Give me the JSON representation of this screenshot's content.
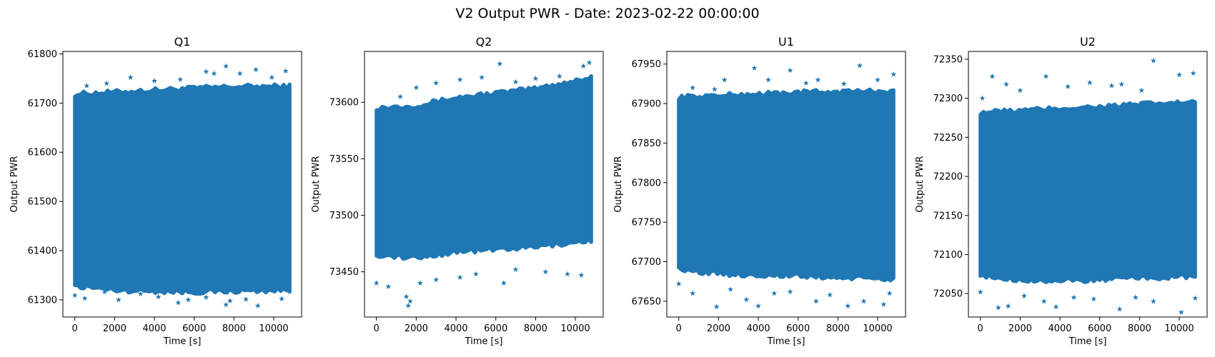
{
  "figure": {
    "title": "V2 Output PWR - Date: 2023-02-22 00:00:00"
  },
  "chart_data": [
    {
      "type": "scatter",
      "title": "Q1",
      "xlabel": "Time [s]",
      "ylabel": "Output PWR",
      "marker": "star",
      "color": "#1f77b4",
      "xlim": [
        -600,
        11400
      ],
      "ylim": [
        61265,
        61805
      ],
      "xticks": [
        0,
        2000,
        4000,
        6000,
        8000,
        10000
      ],
      "yticks": [
        61300,
        61400,
        61500,
        61600,
        61700,
        61800
      ],
      "x_range": [
        0,
        10800
      ],
      "band_lower": [
        [
          0,
          61328
        ],
        [
          2000,
          61320
        ],
        [
          4000,
          61318
        ],
        [
          6000,
          61316
        ],
        [
          8000,
          61318
        ],
        [
          10800,
          61320
        ]
      ],
      "band_upper": [
        [
          0,
          61718
        ],
        [
          2000,
          61722
        ],
        [
          4000,
          61726
        ],
        [
          6000,
          61730
        ],
        [
          8000,
          61733
        ],
        [
          10800,
          61734
        ]
      ],
      "outliers": [
        [
          0,
          61309
        ],
        [
          500,
          61303
        ],
        [
          1500,
          61316
        ],
        [
          2200,
          61300
        ],
        [
          3300,
          61312
        ],
        [
          4200,
          61306
        ],
        [
          5200,
          61294
        ],
        [
          5700,
          61300
        ],
        [
          6600,
          61305
        ],
        [
          7600,
          61290
        ],
        [
          7800,
          61298
        ],
        [
          8600,
          61301
        ],
        [
          9200,
          61288
        ],
        [
          10400,
          61302
        ],
        [
          10800,
          61316
        ],
        [
          600,
          61735
        ],
        [
          1600,
          61740
        ],
        [
          2800,
          61752
        ],
        [
          4000,
          61745
        ],
        [
          5300,
          61748
        ],
        [
          6600,
          61764
        ],
        [
          7000,
          61760
        ],
        [
          7600,
          61775
        ],
        [
          8300,
          61760
        ],
        [
          9100,
          61768
        ],
        [
          9900,
          61752
        ],
        [
          10600,
          61765
        ]
      ],
      "grid": false,
      "legend": "none"
    },
    {
      "type": "scatter",
      "title": "Q2",
      "xlabel": "Time [s]",
      "ylabel": "Output PWR",
      "marker": "star",
      "color": "#1f77b4",
      "xlim": [
        -600,
        11400
      ],
      "ylim": [
        73410,
        73645
      ],
      "xticks": [
        0,
        2000,
        4000,
        6000,
        8000,
        10000
      ],
      "yticks": [
        73450,
        73500,
        73550,
        73600
      ],
      "x_range": [
        0,
        10800
      ],
      "band_lower": [
        [
          0,
          73465
        ],
        [
          2000,
          73462
        ],
        [
          4000,
          73468
        ],
        [
          6000,
          73470
        ],
        [
          8000,
          73472
        ],
        [
          10800,
          73478
        ]
      ],
      "band_upper": [
        [
          0,
          73595
        ],
        [
          2000,
          73597
        ],
        [
          4000,
          73604
        ],
        [
          6000,
          73608
        ],
        [
          8000,
          73612
        ],
        [
          10800,
          73622
        ]
      ],
      "outliers": [
        [
          0,
          73440
        ],
        [
          600,
          73437
        ],
        [
          1500,
          73428
        ],
        [
          1600,
          73420
        ],
        [
          1700,
          73424
        ],
        [
          2200,
          73440
        ],
        [
          3000,
          73443
        ],
        [
          4200,
          73445
        ],
        [
          5000,
          73448
        ],
        [
          6400,
          73440
        ],
        [
          7000,
          73452
        ],
        [
          8500,
          73450
        ],
        [
          9600,
          73448
        ],
        [
          10300,
          73447
        ],
        [
          1200,
          73605
        ],
        [
          2000,
          73613
        ],
        [
          3000,
          73617
        ],
        [
          4200,
          73620
        ],
        [
          5300,
          73622
        ],
        [
          6200,
          73634
        ],
        [
          7000,
          73618
        ],
        [
          8000,
          73621
        ],
        [
          9200,
          73623
        ],
        [
          10400,
          73632
        ],
        [
          10700,
          73635
        ]
      ],
      "grid": false,
      "legend": "none"
    },
    {
      "type": "scatter",
      "title": "U1",
      "xlabel": "Time [s]",
      "ylabel": "Output PWR",
      "marker": "star",
      "color": "#1f77b4",
      "xlim": [
        -600,
        11400
      ],
      "ylim": [
        67630,
        67966
      ],
      "xticks": [
        0,
        2000,
        4000,
        6000,
        8000,
        10000
      ],
      "yticks": [
        67650,
        67700,
        67750,
        67800,
        67850,
        67900,
        67950
      ],
      "x_range": [
        0,
        10800
      ],
      "band_lower": [
        [
          0,
          67690
        ],
        [
          2000,
          67685
        ],
        [
          4000,
          67683
        ],
        [
          6000,
          67682
        ],
        [
          8000,
          67680
        ],
        [
          10800,
          67678
        ]
      ],
      "band_upper": [
        [
          0,
          67908
        ],
        [
          2000,
          67910
        ],
        [
          4000,
          67912
        ],
        [
          6000,
          67914
        ],
        [
          8000,
          67915
        ],
        [
          10800,
          67916
        ]
      ],
      "outliers": [
        [
          0,
          67672
        ],
        [
          700,
          67660
        ],
        [
          1900,
          67643
        ],
        [
          2600,
          67665
        ],
        [
          3400,
          67652
        ],
        [
          4000,
          67644
        ],
        [
          4800,
          67660
        ],
        [
          5600,
          67662
        ],
        [
          6900,
          67650
        ],
        [
          7600,
          67658
        ],
        [
          8500,
          67644
        ],
        [
          9300,
          67650
        ],
        [
          10300,
          67646
        ],
        [
          10600,
          67660
        ],
        [
          700,
          67920
        ],
        [
          1800,
          67918
        ],
        [
          2300,
          67930
        ],
        [
          3800,
          67945
        ],
        [
          4500,
          67930
        ],
        [
          5600,
          67942
        ],
        [
          6400,
          67926
        ],
        [
          7000,
          67930
        ],
        [
          8300,
          67925
        ],
        [
          9100,
          67948
        ],
        [
          10000,
          67930
        ],
        [
          10800,
          67937
        ]
      ],
      "grid": false,
      "legend": "none"
    },
    {
      "type": "scatter",
      "title": "U2",
      "xlabel": "Time [s]",
      "ylabel": "Output PWR",
      "marker": "star",
      "color": "#1f77b4",
      "xlim": [
        -600,
        11400
      ],
      "ylim": [
        72020,
        72360
      ],
      "xticks": [
        0,
        2000,
        4000,
        6000,
        8000,
        10000
      ],
      "yticks": [
        72050,
        72100,
        72150,
        72200,
        72250,
        72300,
        72350
      ],
      "x_range": [
        0,
        10800
      ],
      "band_lower": [
        [
          0,
          72072
        ],
        [
          2000,
          72068
        ],
        [
          4000,
          72066
        ],
        [
          6000,
          72068
        ],
        [
          8000,
          72070
        ],
        [
          10800,
          72072
        ]
      ],
      "band_upper": [
        [
          0,
          72282
        ],
        [
          2000,
          72284
        ],
        [
          4000,
          72287
        ],
        [
          6000,
          72289
        ],
        [
          8000,
          72292
        ],
        [
          10800,
          72295
        ]
      ],
      "outliers": [
        [
          0,
          72052
        ],
        [
          900,
          72032
        ],
        [
          1400,
          72034
        ],
        [
          2200,
          72047
        ],
        [
          3200,
          72040
        ],
        [
          3800,
          72033
        ],
        [
          4700,
          72045
        ],
        [
          5700,
          72043
        ],
        [
          7000,
          72030
        ],
        [
          7800,
          72045
        ],
        [
          8700,
          72040
        ],
        [
          10100,
          72026
        ],
        [
          10800,
          72044
        ],
        [
          100,
          72300
        ],
        [
          600,
          72328
        ],
        [
          1300,
          72318
        ],
        [
          2000,
          72310
        ],
        [
          3300,
          72328
        ],
        [
          4400,
          72315
        ],
        [
          5500,
          72320
        ],
        [
          6600,
          72316
        ],
        [
          7100,
          72318
        ],
        [
          8100,
          72310
        ],
        [
          8700,
          72348
        ],
        [
          10000,
          72330
        ],
        [
          10700,
          72332
        ]
      ],
      "grid": false,
      "legend": "none"
    }
  ]
}
